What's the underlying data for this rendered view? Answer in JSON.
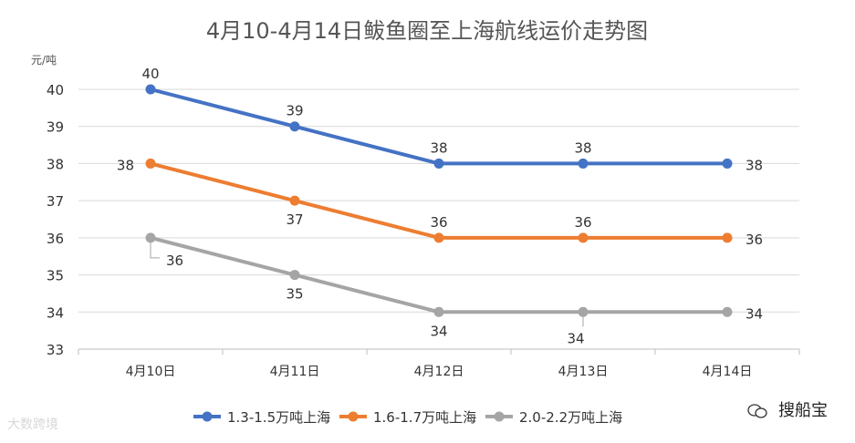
{
  "chart_data": {
    "type": "line",
    "title": "4月10-4月14日鲅鱼圈至上海航线运价走势图",
    "ylabel": "元/吨",
    "xlabel": "",
    "categories": [
      "4月10日",
      "4月11日",
      "4月12日",
      "4月13日",
      "4月14日"
    ],
    "ylim": [
      33,
      40
    ],
    "yticks": [
      33,
      34,
      35,
      36,
      37,
      38,
      39,
      40
    ],
    "grid": true,
    "legend_position": "bottom",
    "series": [
      {
        "name": "1.3-1.5万吨上海",
        "color": "#4472c4",
        "values": [
          40,
          39,
          38,
          38,
          38
        ],
        "labels": [
          "40",
          "39",
          "38",
          "38",
          "38"
        ]
      },
      {
        "name": "1.6-1.7万吨上海",
        "color": "#ed7d31",
        "values": [
          38,
          37,
          36,
          36,
          36
        ],
        "labels": [
          "38",
          "37",
          "36",
          "36",
          "36"
        ]
      },
      {
        "name": "2.0-2.2万吨上海",
        "color": "#a5a5a5",
        "values": [
          36,
          35,
          34,
          34,
          34
        ],
        "labels": [
          "36",
          "35",
          "34",
          "34",
          "34"
        ]
      }
    ]
  },
  "watermarks": {
    "left": "大数跨境",
    "right": "搜船宝"
  }
}
